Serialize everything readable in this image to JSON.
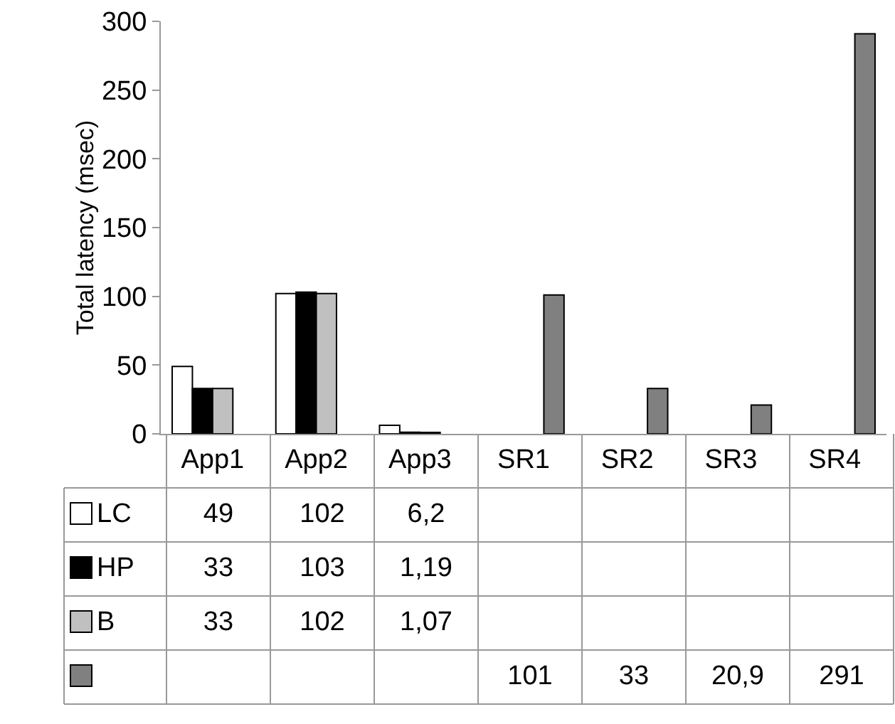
{
  "chart_data": {
    "type": "bar",
    "ylabel": "Total latency (msec)",
    "categories": [
      "App1",
      "App2",
      "App3",
      "SR1",
      "SR2",
      "SR3",
      "SR4"
    ],
    "ylim": [
      0,
      300
    ],
    "yticks": [
      0,
      50,
      100,
      150,
      200,
      250,
      300
    ],
    "grid": false,
    "legend": "left",
    "series": [
      {
        "name": "LC",
        "color": "#ffffff",
        "values": [
          49,
          102,
          6.2,
          null,
          null,
          null,
          null
        ],
        "value_labels": [
          "49",
          "102",
          "6,2",
          null,
          null,
          null,
          null
        ]
      },
      {
        "name": "HP",
        "color": "#000000",
        "values": [
          33,
          103,
          1.19,
          null,
          null,
          null,
          null
        ],
        "value_labels": [
          "33",
          "103",
          "1,19",
          null,
          null,
          null,
          null
        ]
      },
      {
        "name": "B",
        "color": "#c0c0c0",
        "values": [
          33,
          102,
          1.07,
          null,
          null,
          null,
          null
        ],
        "value_labels": [
          "33",
          "102",
          "1,07",
          null,
          null,
          null,
          null
        ]
      },
      {
        "color": "#808080",
        "values": [
          null,
          null,
          null,
          101,
          33,
          20.9,
          291
        ],
        "value_labels": [
          null,
          null,
          null,
          "101",
          "33",
          "20,9",
          "291"
        ]
      }
    ]
  }
}
